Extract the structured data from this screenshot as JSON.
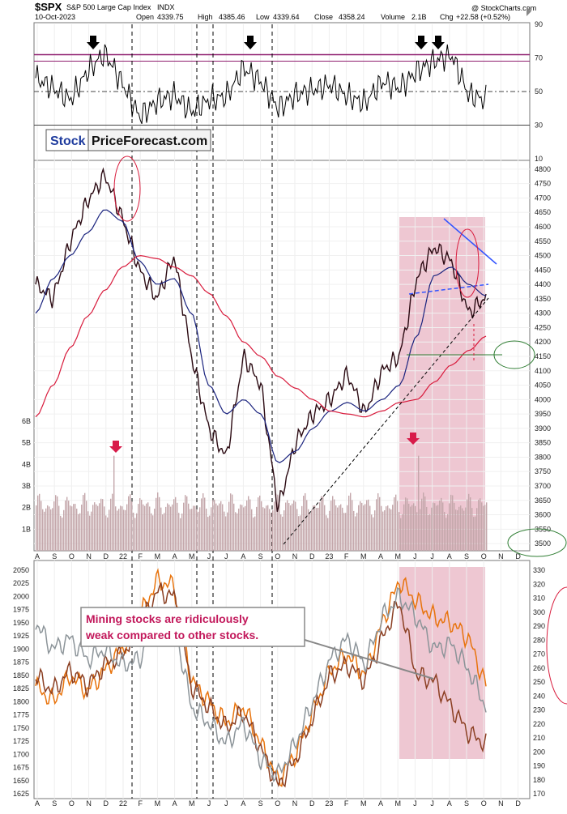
{
  "header": {
    "symbol": "$SPX",
    "name": "S&P 500 Large Cap Index",
    "exchange": "INDX",
    "date": "10-Oct-2023",
    "open_label": "Open",
    "open": "4339.75",
    "high_label": "High",
    "high": "4385.46",
    "low_label": "Low",
    "low": "4339.64",
    "close_label": "Close",
    "close": "4358.24",
    "volume_label": "Volume",
    "volume": "2.1B",
    "chg_label": "Chg",
    "chg": "+22.58 (+0.52%)",
    "copyright": "@ StockCharts.com"
  },
  "watermark": {
    "part1": "Stock",
    "part2": "PriceForecast.com"
  },
  "annotation": {
    "line1": "Mining stocks are ridiculously",
    "line2": "weak compared to other stocks."
  },
  "colors": {
    "highlight": "#e8b4c3",
    "rsi": "#000000",
    "ma50": "#1a237e",
    "ma200": "#d81b3c",
    "trend_blue": "#3355ff",
    "green_ellipse": "#2e7d32",
    "orange_series": "#e8730c",
    "brown_series": "#8b3f22",
    "gray_series": "#8c9499",
    "volume": "#c4a7ab",
    "arrow": "#d81b4a"
  },
  "months": [
    "A",
    "S",
    "O",
    "N",
    "D",
    "22",
    "F",
    "M",
    "A",
    "M",
    "J",
    "J",
    "A",
    "S",
    "O",
    "N",
    "D",
    "23",
    "F",
    "M",
    "A",
    "M",
    "J",
    "J",
    "A",
    "S",
    "O",
    "N",
    "D"
  ],
  "chart_data": [
    {
      "type": "line",
      "panel": "RSI",
      "y_ticks": [
        "90",
        "70",
        "50",
        "30",
        "10"
      ],
      "reference_lines": [
        70,
        50,
        30
      ],
      "ylim": [
        10,
        90
      ],
      "x": [
        "A",
        "S",
        "O",
        "N",
        "D",
        "22",
        "F",
        "M",
        "A",
        "M",
        "J",
        "J",
        "A",
        "S",
        "O",
        "N",
        "D",
        "23",
        "F",
        "M",
        "A",
        "M",
        "J",
        "J",
        "A",
        "S",
        "O"
      ],
      "values": [
        58,
        52,
        45,
        62,
        73,
        55,
        35,
        44,
        48,
        38,
        45,
        47,
        64,
        56,
        40,
        48,
        51,
        54,
        47,
        43,
        56,
        52,
        62,
        68,
        72,
        48,
        45
      ],
      "markers": [
        "N",
        "A",
        "J",
        "A"
      ]
    },
    {
      "type": "line",
      "panel": "SPX price",
      "y_ticks": [
        "4800",
        "4750",
        "4700",
        "4650",
        "4600",
        "4550",
        "4500",
        "4450",
        "4400",
        "4350",
        "4300",
        "4250",
        "4200",
        "4150",
        "4100",
        "4050",
        "4000",
        "3950",
        "3900",
        "3850",
        "3800",
        "3750",
        "3700",
        "3650",
        "3600",
        "3550",
        "3500"
      ],
      "ylim": [
        3475,
        4825
      ],
      "x": [
        "A",
        "S",
        "O",
        "N",
        "D",
        "22",
        "F",
        "M",
        "A",
        "M",
        "J",
        "J",
        "A",
        "S",
        "O",
        "N",
        "D",
        "23",
        "F",
        "M",
        "A",
        "M",
        "J",
        "J",
        "A",
        "S",
        "O"
      ],
      "series": [
        {
          "values": [
            4400,
            4350,
            4550,
            4690,
            4780,
            4630,
            4450,
            4350,
            4500,
            4150,
            3900,
            3800,
            4150,
            4050,
            3620,
            3850,
            3950,
            4000,
            4090,
            3950,
            4100,
            4150,
            4420,
            4530,
            4480,
            4300,
            4358
          ]
        },
        {
          "values": [
            4300,
            4420,
            4500,
            4580,
            4660,
            4620,
            4480,
            4400,
            4420,
            4300,
            4050,
            3950,
            4000,
            3950,
            3780,
            3820,
            3900,
            3960,
            3990,
            3960,
            4000,
            4050,
            4220,
            4430,
            4460,
            4400,
            4360
          ]
        },
        {
          "values": [
            3940,
            4050,
            4180,
            4290,
            4380,
            4460,
            4500,
            4490,
            4460,
            4430,
            4370,
            4290,
            4200,
            4150,
            4080,
            4040,
            4000,
            3960,
            3950,
            3940,
            3960,
            3990,
            4000,
            4060,
            4120,
            4170,
            4220
          ]
        }
      ],
      "horizontal_line": 4100
    },
    {
      "type": "bar",
      "panel": "Volume",
      "y_ticks": [
        "6B",
        "5B",
        "4B",
        "3B",
        "2B",
        "1B"
      ],
      "ylim": [
        0,
        6
      ]
    },
    {
      "type": "line",
      "panel": "Comparison",
      "left_ticks": [
        "2050",
        "2025",
        "2000",
        "1975",
        "1950",
        "1925",
        "1900",
        "1875",
        "1850",
        "1825",
        "1800",
        "1775",
        "1750",
        "1725",
        "1700",
        "1675",
        "1650",
        "1625"
      ],
      "right_ticks": [
        "330",
        "320",
        "310",
        "300",
        "290",
        "280",
        "270",
        "260",
        "250",
        "240",
        "230",
        "220",
        "210",
        "200",
        "190",
        "180",
        "170"
      ],
      "x": [
        "A",
        "S",
        "O",
        "N",
        "D",
        "22",
        "F",
        "M",
        "A",
        "M",
        "J",
        "J",
        "A",
        "S",
        "O",
        "N",
        "D",
        "23",
        "F",
        "M",
        "A",
        "M",
        "J",
        "J",
        "A",
        "S",
        "O"
      ],
      "series": [
        {
          "values": [
            1830,
            1800,
            1850,
            1820,
            1860,
            1900,
            1960,
            2030,
            2020,
            1840,
            1800,
            1760,
            1790,
            1720,
            1650,
            1700,
            1780,
            1860,
            1890,
            1850,
            1950,
            2030,
            1990,
            1960,
            1950,
            1920,
            1830
          ]
        },
        {
          "values": [
            1850,
            1820,
            1860,
            1830,
            1870,
            1890,
            1940,
            2010,
            2000,
            1830,
            1790,
            1750,
            1780,
            1710,
            1640,
            1690,
            1770,
            1850,
            1870,
            1840,
            1920,
            1990,
            1850,
            1840,
            1790,
            1740,
            1720
          ]
        },
        {
          "values": [
            1950,
            1900,
            1920,
            1880,
            1900,
            1870,
            1880,
            1960,
            1950,
            1790,
            1760,
            1720,
            1760,
            1690,
            1660,
            1720,
            1800,
            1880,
            1920,
            1870,
            1960,
            2000,
            1960,
            1900,
            1910,
            1860,
            1790
          ]
        }
      ]
    }
  ]
}
